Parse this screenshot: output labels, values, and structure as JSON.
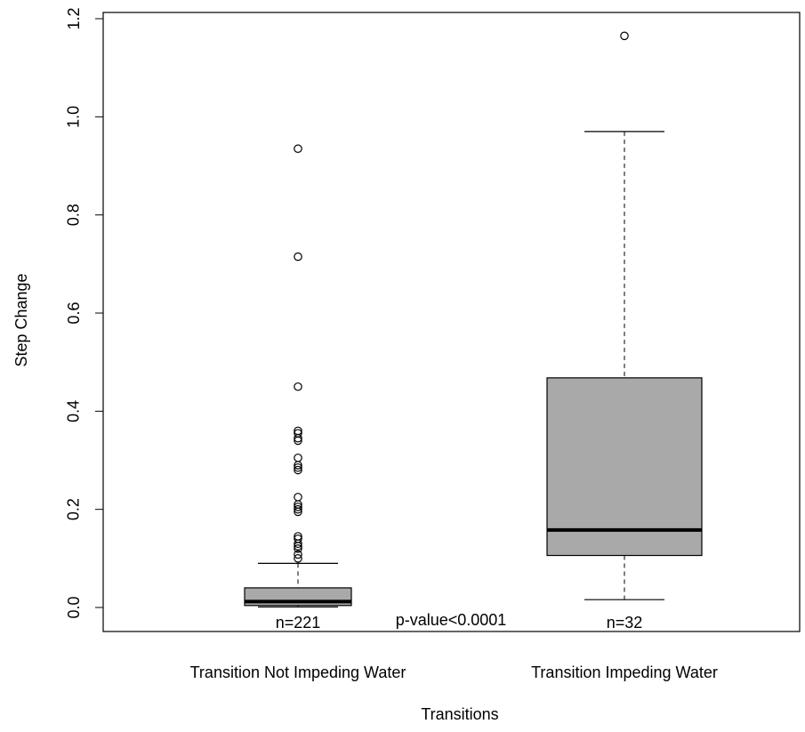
{
  "chart_data": {
    "type": "box",
    "xlabel": "Transitions",
    "ylabel": "Step Change",
    "ylim": [
      -0.05,
      1.22
    ],
    "yticks": [
      "0.0",
      "0.2",
      "0.4",
      "0.6",
      "0.8",
      "1.0",
      "1.2"
    ],
    "ytick_values": [
      0.0,
      0.2,
      0.4,
      0.6,
      0.8,
      1.0,
      1.2
    ],
    "grid": false,
    "box_fill": "#a9a9a9",
    "categories": [
      "Transition Not Impeding Water",
      "Transition Impeding Water"
    ],
    "boxes": [
      {
        "category": "Transition Not Impeding Water",
        "whisker_low": 0.001,
        "q1": 0.004,
        "median": 0.012,
        "q3": 0.04,
        "whisker_high": 0.09,
        "outliers": [
          0.935,
          0.715,
          0.45,
          0.36,
          0.355,
          0.345,
          0.34,
          0.305,
          0.29,
          0.285,
          0.28,
          0.225,
          0.21,
          0.205,
          0.2,
          0.195,
          0.145,
          0.14,
          0.13,
          0.125,
          0.12,
          0.108,
          0.1
        ],
        "n_label": "n=221"
      },
      {
        "category": "Transition Impeding Water",
        "whisker_low": 0.016,
        "q1": 0.106,
        "median": 0.158,
        "q3": 0.468,
        "whisker_high": 0.97,
        "outliers": [
          1.165
        ],
        "n_label": "n=32"
      }
    ],
    "annotations": {
      "p_value": "p-value<0.0001"
    }
  }
}
